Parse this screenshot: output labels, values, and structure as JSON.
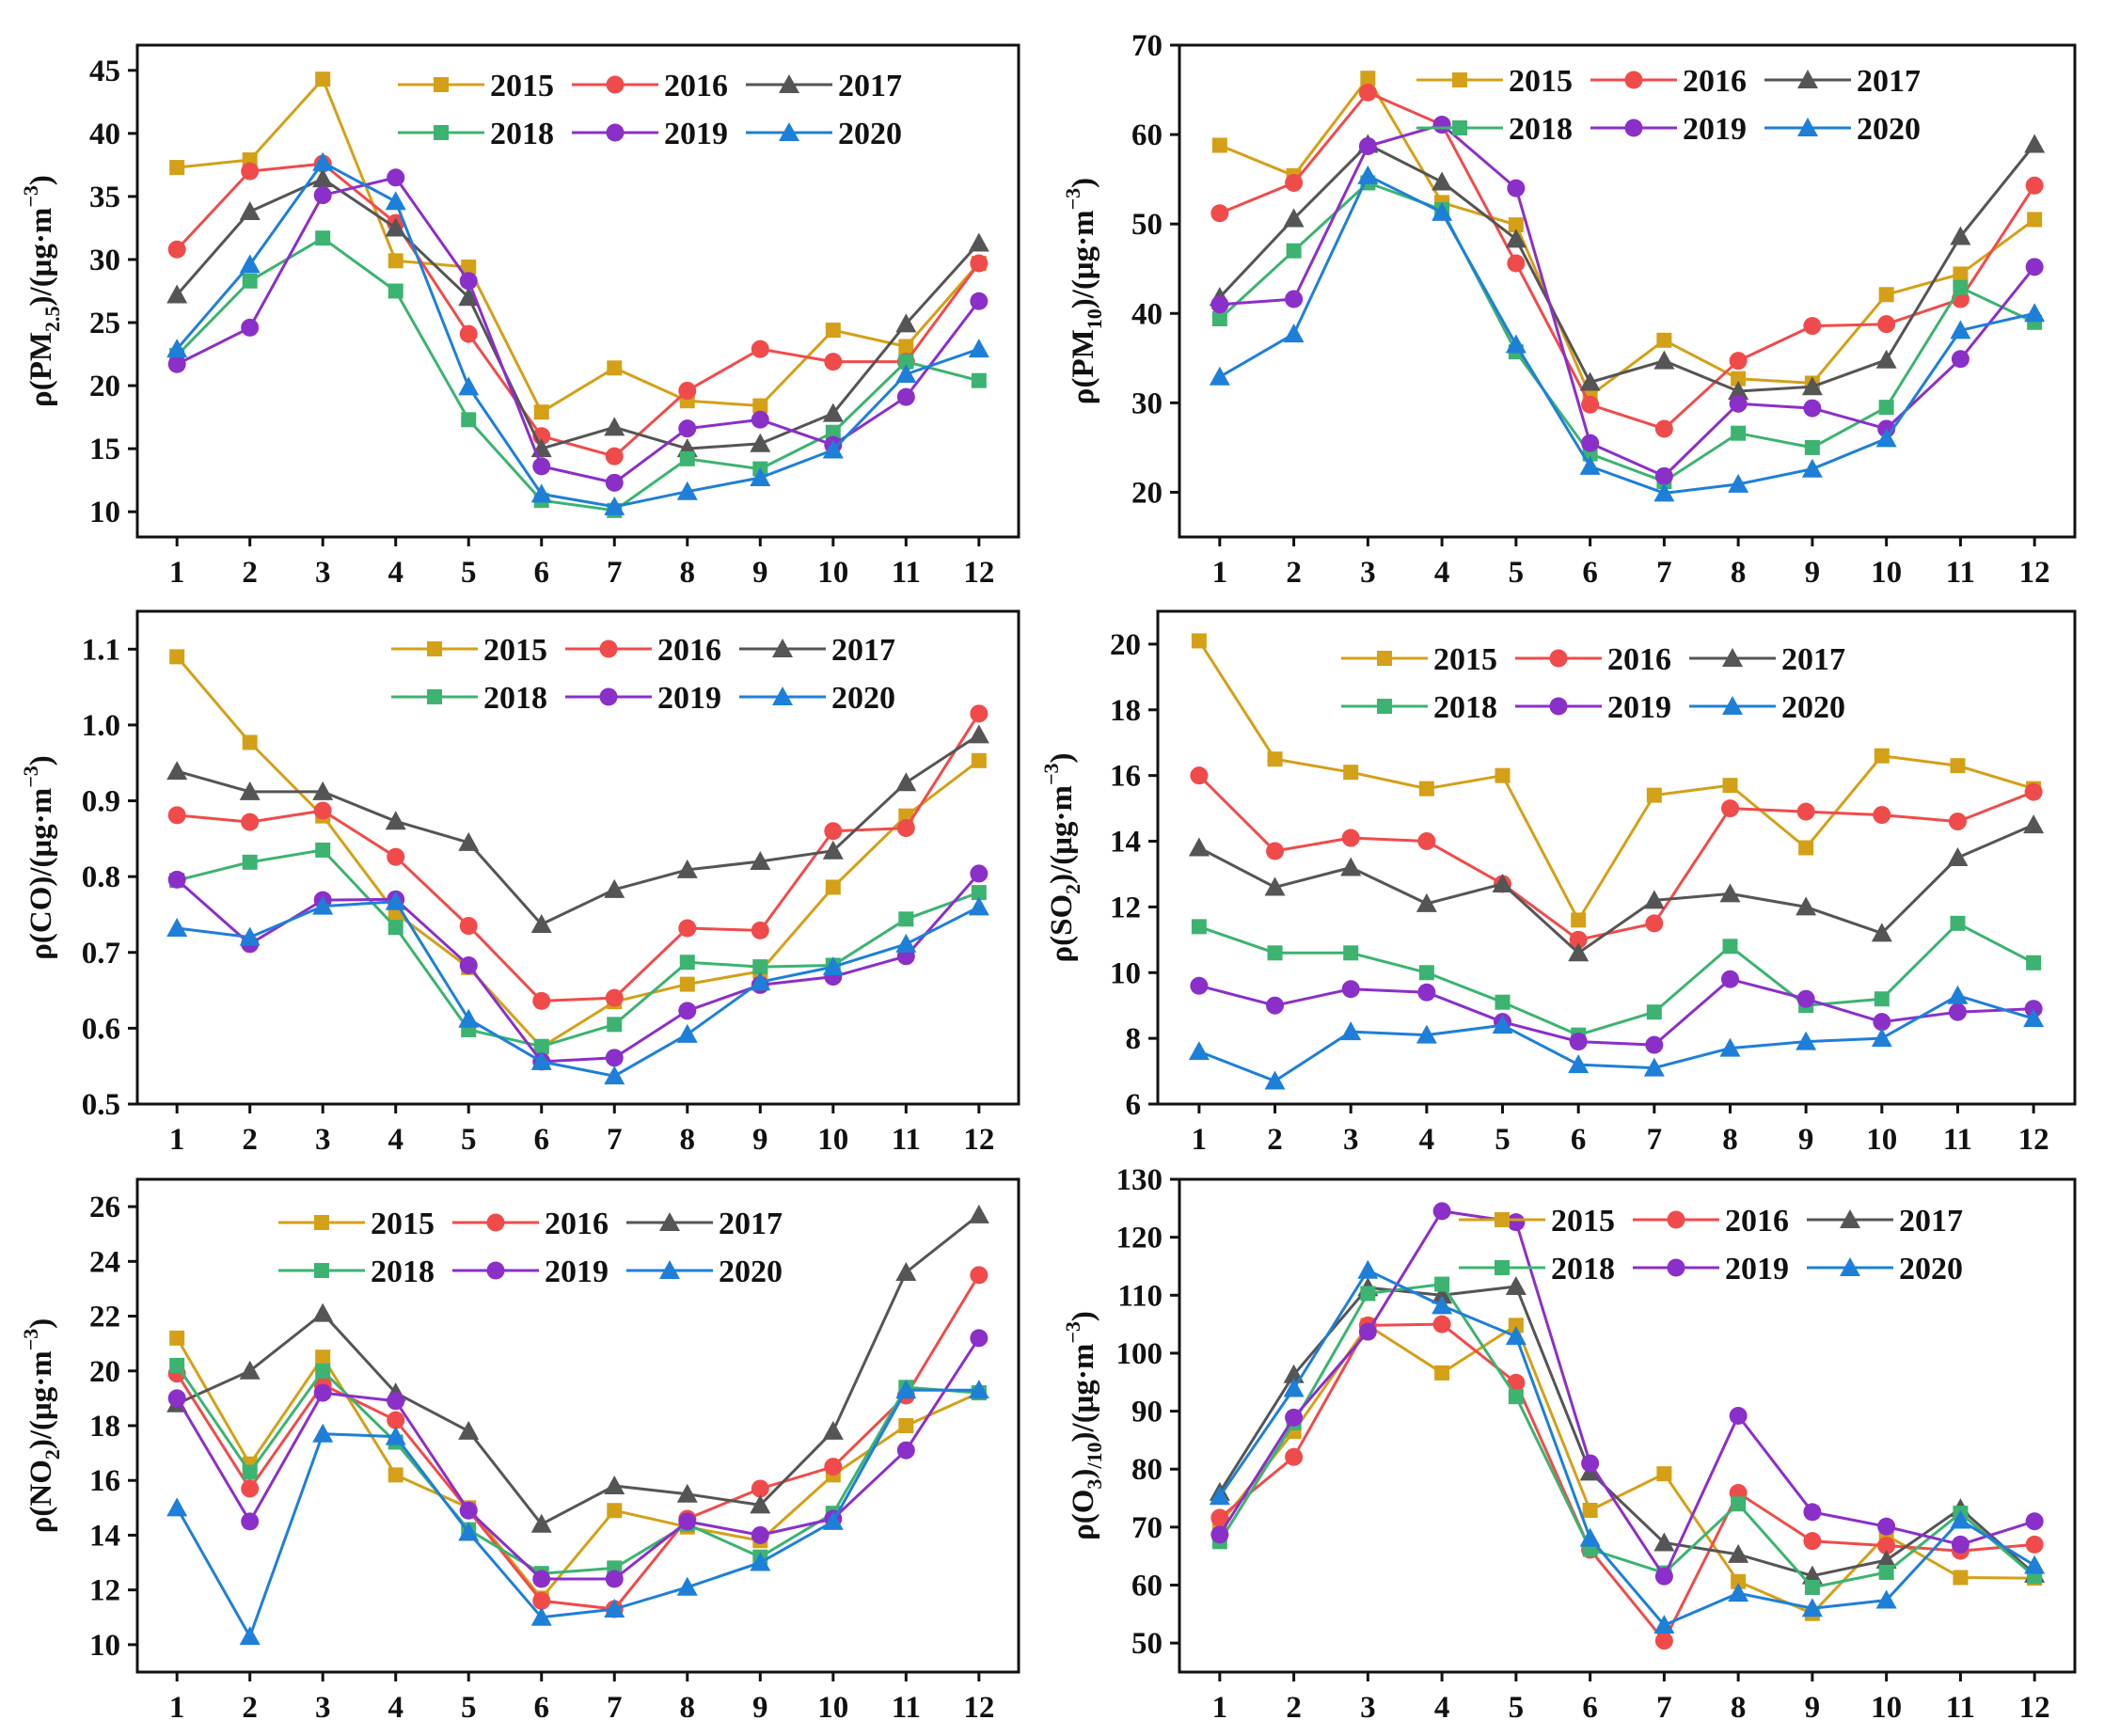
{
  "chart_data": [
    {
      "type": "line",
      "ylabel_parts": [
        {
          "text": "ρ(PM",
          "pos": "normal"
        },
        {
          "text": "2.5",
          "pos": "sub"
        },
        {
          "text": ")/(μg·m",
          "pos": "normal"
        },
        {
          "text": "−3",
          "pos": "sup"
        },
        {
          "text": ")",
          "pos": "normal"
        }
      ],
      "categories": [
        "1",
        "2",
        "3",
        "4",
        "5",
        "6",
        "7",
        "8",
        "9",
        "10",
        "11",
        "12"
      ],
      "ylim": [
        8,
        47
      ],
      "yticks": [
        "10",
        "15",
        "20",
        "25",
        "30",
        "35",
        "40",
        "45"
      ],
      "legend_rows": [
        [
          "2015",
          "2016",
          "2017"
        ],
        [
          "2018",
          "2019",
          "2020"
        ]
      ],
      "series": [
        {
          "name": "2015",
          "marker": "square",
          "color": "#d4a017",
          "values": [
            37.3,
            37.9,
            44.3,
            29.9,
            29.4,
            17.9,
            21.4,
            18.8,
            18.4,
            24.4,
            23.1,
            29.7
          ]
        },
        {
          "name": "2016",
          "marker": "circle",
          "color": "#f04b4b",
          "values": [
            30.8,
            37.0,
            37.6,
            32.9,
            24.1,
            16.0,
            14.4,
            19.6,
            22.9,
            21.9,
            21.9,
            29.7
          ]
        },
        {
          "name": "2017",
          "marker": "triangle",
          "color": "#555555",
          "values": [
            27.2,
            33.8,
            36.4,
            32.5,
            27.0,
            15.0,
            16.7,
            15.0,
            15.4,
            17.8,
            24.9,
            31.3
          ]
        },
        {
          "name": "2018",
          "marker": "square",
          "color": "#3cb371",
          "values": [
            22.4,
            28.3,
            31.7,
            27.5,
            17.3,
            10.9,
            10.1,
            14.2,
            13.4,
            16.3,
            21.9,
            20.4
          ]
        },
        {
          "name": "2019",
          "marker": "circle",
          "color": "#8b2fc9",
          "values": [
            21.7,
            24.6,
            35.1,
            36.5,
            28.3,
            13.6,
            12.3,
            16.6,
            17.3,
            15.3,
            19.1,
            26.7
          ]
        },
        {
          "name": "2020",
          "marker": "triangle",
          "color": "#1e7fd8",
          "values": [
            22.9,
            29.6,
            37.7,
            34.6,
            19.9,
            11.4,
            10.4,
            11.6,
            12.7,
            14.9,
            20.9,
            22.9
          ]
        }
      ]
    },
    {
      "type": "line",
      "ylabel_parts": [
        {
          "text": "ρ(PM",
          "pos": "normal"
        },
        {
          "text": "10",
          "pos": "sub"
        },
        {
          "text": ")/(μg·m",
          "pos": "normal"
        },
        {
          "text": "−3",
          "pos": "sup"
        },
        {
          "text": ")",
          "pos": "normal"
        }
      ],
      "categories": [
        "1",
        "2",
        "3",
        "4",
        "5",
        "6",
        "7",
        "8",
        "9",
        "10",
        "11",
        "12"
      ],
      "ylim": [
        15,
        70
      ],
      "yticks": [
        "20",
        "30",
        "40",
        "50",
        "60",
        "70"
      ],
      "legend_rows": [
        [
          "2015",
          "2016",
          "2017"
        ],
        [
          "2018",
          "2019",
          "2020"
        ]
      ],
      "series": [
        {
          "name": "2015",
          "marker": "square",
          "color": "#d4a017",
          "values": [
            58.8,
            55.4,
            66.3,
            52.4,
            49.9,
            30.8,
            37.0,
            32.7,
            32.2,
            42.1,
            44.4,
            50.5
          ]
        },
        {
          "name": "2016",
          "marker": "circle",
          "color": "#f04b4b",
          "values": [
            51.2,
            54.6,
            64.7,
            61.1,
            45.6,
            29.8,
            27.1,
            34.7,
            38.6,
            38.8,
            41.6,
            54.3
          ]
        },
        {
          "name": "2017",
          "marker": "triangle",
          "color": "#555555",
          "values": [
            41.8,
            50.6,
            58.9,
            54.7,
            48.3,
            32.3,
            34.7,
            31.3,
            31.8,
            34.8,
            48.6,
            58.9
          ]
        },
        {
          "name": "2018",
          "marker": "square",
          "color": "#3cb371",
          "values": [
            39.4,
            47.0,
            54.6,
            51.6,
            35.7,
            24.3,
            21.2,
            26.6,
            25.0,
            29.5,
            42.9,
            39.0
          ]
        },
        {
          "name": "2019",
          "marker": "circle",
          "color": "#8b2fc9",
          "values": [
            41.0,
            41.6,
            58.7,
            61.1,
            54.0,
            25.5,
            21.8,
            29.9,
            29.4,
            27.1,
            34.9,
            45.2
          ]
        },
        {
          "name": "2020",
          "marker": "triangle",
          "color": "#1e7fd8",
          "values": [
            32.9,
            37.7,
            55.4,
            51.3,
            36.5,
            22.9,
            19.9,
            20.9,
            22.6,
            26.0,
            38.1,
            40.0
          ]
        }
      ]
    },
    {
      "type": "line",
      "ylabel_parts": [
        {
          "text": "ρ(CO)/(μg·m",
          "pos": "normal"
        },
        {
          "text": "−3",
          "pos": "sup"
        },
        {
          "text": ")",
          "pos": "normal"
        }
      ],
      "categories": [
        "1",
        "2",
        "3",
        "4",
        "5",
        "6",
        "7",
        "8",
        "9",
        "10",
        "11",
        "12"
      ],
      "ylim": [
        0.5,
        1.15
      ],
      "yticks": [
        "0.5",
        "0.6",
        "0.7",
        "0.8",
        "0.9",
        "1.0",
        "1.1"
      ],
      "legend_rows": [
        [
          "2015",
          "2016",
          "2017"
        ],
        [
          "2018",
          "2019",
          "2020"
        ]
      ],
      "series": [
        {
          "name": "2015",
          "marker": "square",
          "color": "#d4a017",
          "values": [
            1.09,
            0.977,
            0.88,
            0.752,
            0.68,
            0.575,
            0.635,
            0.658,
            0.675,
            0.786,
            0.88,
            0.953
          ]
        },
        {
          "name": "2016",
          "marker": "circle",
          "color": "#f04b4b",
          "values": [
            0.881,
            0.872,
            0.887,
            0.826,
            0.735,
            0.636,
            0.64,
            0.732,
            0.729,
            0.86,
            0.864,
            1.015
          ]
        },
        {
          "name": "2017",
          "marker": "triangle",
          "color": "#555555",
          "values": [
            0.939,
            0.912,
            0.912,
            0.873,
            0.845,
            0.737,
            0.783,
            0.809,
            0.82,
            0.834,
            0.924,
            0.987
          ]
        },
        {
          "name": "2018",
          "marker": "square",
          "color": "#3cb371",
          "values": [
            0.795,
            0.819,
            0.835,
            0.733,
            0.598,
            0.576,
            0.605,
            0.687,
            0.681,
            0.683,
            0.744,
            0.779
          ]
        },
        {
          "name": "2019",
          "marker": "circle",
          "color": "#8b2fc9",
          "values": [
            0.796,
            0.711,
            0.769,
            0.77,
            0.683,
            0.556,
            0.561,
            0.623,
            0.657,
            0.668,
            0.695,
            0.804
          ]
        },
        {
          "name": "2020",
          "marker": "triangle",
          "color": "#1e7fd8",
          "values": [
            0.732,
            0.72,
            0.761,
            0.767,
            0.612,
            0.556,
            0.537,
            0.592,
            0.661,
            0.681,
            0.711,
            0.76
          ]
        }
      ]
    },
    {
      "type": "line",
      "ylabel_parts": [
        {
          "text": "ρ(SO",
          "pos": "normal"
        },
        {
          "text": "2",
          "pos": "sub"
        },
        {
          "text": ")/(μg·m",
          "pos": "normal"
        },
        {
          "text": "−3",
          "pos": "sup"
        },
        {
          "text": ")",
          "pos": "normal"
        }
      ],
      "categories": [
        "1",
        "2",
        "3",
        "4",
        "5",
        "6",
        "7",
        "8",
        "9",
        "10",
        "11",
        "12"
      ],
      "ylim": [
        6,
        21
      ],
      "yticks": [
        "6",
        "8",
        "10",
        "12",
        "14",
        "16",
        "18",
        "20"
      ],
      "legend_rows": [
        [
          "2015",
          "2016",
          "2017"
        ],
        [
          "2018",
          "2019",
          "2020"
        ]
      ],
      "series": [
        {
          "name": "2015",
          "marker": "square",
          "color": "#d4a017",
          "values": [
            20.1,
            16.5,
            16.1,
            15.6,
            16.0,
            11.6,
            15.4,
            15.7,
            13.8,
            16.6,
            16.3,
            15.6
          ]
        },
        {
          "name": "2016",
          "marker": "circle",
          "color": "#f04b4b",
          "values": [
            16.0,
            13.7,
            14.1,
            14.0,
            12.7,
            11.0,
            11.5,
            15.0,
            14.9,
            14.8,
            14.6,
            15.5
          ]
        },
        {
          "name": "2017",
          "marker": "triangle",
          "color": "#555555",
          "values": [
            13.8,
            12.6,
            13.2,
            12.1,
            12.7,
            10.6,
            12.2,
            12.4,
            12.0,
            11.2,
            13.5,
            14.5
          ]
        },
        {
          "name": "2018",
          "marker": "square",
          "color": "#3cb371",
          "values": [
            11.4,
            10.6,
            10.6,
            10.0,
            9.1,
            8.1,
            8.8,
            10.8,
            9.0,
            9.2,
            11.5,
            10.3
          ]
        },
        {
          "name": "2019",
          "marker": "circle",
          "color": "#8b2fc9",
          "values": [
            9.6,
            9.0,
            9.5,
            9.4,
            8.5,
            7.9,
            7.8,
            9.8,
            9.2,
            8.5,
            8.8,
            8.9
          ]
        },
        {
          "name": "2020",
          "marker": "triangle",
          "color": "#1e7fd8",
          "values": [
            7.6,
            6.7,
            8.2,
            8.1,
            8.4,
            7.2,
            7.1,
            7.7,
            7.9,
            8.0,
            9.3,
            8.6
          ]
        }
      ]
    },
    {
      "type": "line",
      "ylabel_parts": [
        {
          "text": "ρ(NO",
          "pos": "normal"
        },
        {
          "text": "2",
          "pos": "sub"
        },
        {
          "text": ")/(μg·m",
          "pos": "normal"
        },
        {
          "text": "−3",
          "pos": "sup"
        },
        {
          "text": ")",
          "pos": "normal"
        }
      ],
      "categories": [
        "1",
        "2",
        "3",
        "4",
        "5",
        "6",
        "7",
        "8",
        "9",
        "10",
        "11",
        "12"
      ],
      "ylim": [
        9,
        27
      ],
      "yticks": [
        "10",
        "12",
        "14",
        "16",
        "18",
        "20",
        "22",
        "24",
        "26"
      ],
      "legend_rows": [
        [
          "2015",
          "2016",
          "2017"
        ],
        [
          "2018",
          "2019",
          "2020"
        ]
      ],
      "series": [
        {
          "name": "2015",
          "marker": "square",
          "color": "#d4a017",
          "values": [
            21.2,
            16.6,
            20.5,
            16.2,
            15.0,
            11.7,
            14.9,
            14.3,
            13.8,
            16.2,
            18.0,
            19.2
          ]
        },
        {
          "name": "2016",
          "marker": "circle",
          "color": "#f04b4b",
          "values": [
            19.9,
            15.7,
            19.5,
            18.2,
            14.9,
            11.6,
            11.3,
            14.6,
            15.7,
            16.5,
            19.1,
            23.5
          ]
        },
        {
          "name": "2017",
          "marker": "triangle",
          "color": "#555555",
          "values": [
            18.8,
            20.0,
            22.1,
            19.2,
            17.8,
            14.4,
            15.8,
            15.5,
            15.1,
            17.8,
            23.6,
            25.7
          ]
        },
        {
          "name": "2018",
          "marker": "square",
          "color": "#3cb371",
          "values": [
            20.2,
            16.3,
            20.0,
            17.4,
            14.2,
            12.6,
            12.8,
            14.4,
            13.2,
            14.8,
            19.4,
            19.2
          ]
        },
        {
          "name": "2019",
          "marker": "circle",
          "color": "#8b2fc9",
          "values": [
            19.0,
            14.5,
            19.2,
            18.9,
            14.9,
            12.4,
            12.4,
            14.5,
            14.0,
            14.6,
            17.1,
            21.2
          ]
        },
        {
          "name": "2020",
          "marker": "triangle",
          "color": "#1e7fd8",
          "values": [
            15.0,
            10.3,
            17.7,
            17.6,
            14.1,
            11.0,
            11.3,
            12.1,
            13.0,
            14.5,
            19.3,
            19.3
          ]
        }
      ]
    },
    {
      "type": "line",
      "ylabel_parts": [
        {
          "text": "ρ(O",
          "pos": "normal"
        },
        {
          "text": "3",
          "pos": "sub"
        },
        {
          "text": ")",
          "pos": "normal"
        },
        {
          "text": "/10",
          "pos": "sub"
        },
        {
          "text": ")/(μg·m",
          "pos": "normal"
        },
        {
          "text": "−3",
          "pos": "sup"
        },
        {
          "text": ")",
          "pos": "normal"
        }
      ],
      "categories": [
        "1",
        "2",
        "3",
        "4",
        "5",
        "6",
        "7",
        "8",
        "9",
        "10",
        "11",
        "12"
      ],
      "ylim": [
        45,
        130
      ],
      "yticks": [
        "50",
        "60",
        "70",
        "80",
        "90",
        "100",
        "110",
        "120",
        "130"
      ],
      "legend_rows": [
        [
          "2015",
          "2016",
          "2017"
        ],
        [
          "2018",
          "2019",
          "2020"
        ]
      ],
      "series": [
        {
          "name": "2015",
          "marker": "square",
          "color": "#d4a017",
          "values": [
            70.5,
            86.5,
            104.8,
            96.6,
            104.8,
            72.9,
            79.2,
            60.6,
            55.1,
            68.6,
            61.3,
            61.2
          ]
        },
        {
          "name": "2016",
          "marker": "circle",
          "color": "#f04b4b",
          "values": [
            71.6,
            82.1,
            104.8,
            105.0,
            94.9,
            66.1,
            50.4,
            75.9,
            67.6,
            66.8,
            65.9,
            67.0
          ]
        },
        {
          "name": "2017",
          "marker": "triangle",
          "color": "#555555",
          "values": [
            76.0,
            96.3,
            111.3,
            110.0,
            111.5,
            79.5,
            67.3,
            65.3,
            61.6,
            64.3,
            73.2,
            61.9
          ]
        },
        {
          "name": "2018",
          "marker": "square",
          "color": "#3cb371",
          "values": [
            67.5,
            88.0,
            110.3,
            111.9,
            92.5,
            66.2,
            62.1,
            74.0,
            59.6,
            62.2,
            72.4,
            61.5
          ]
        },
        {
          "name": "2019",
          "marker": "circle",
          "color": "#8b2fc9",
          "values": [
            68.7,
            88.9,
            103.7,
            124.5,
            122.6,
            81.0,
            61.5,
            89.2,
            72.6,
            70.1,
            67.0,
            71.0
          ]
        },
        {
          "name": "2020",
          "marker": "triangle",
          "color": "#1e7fd8",
          "values": [
            75.3,
            93.9,
            114.3,
            108.2,
            102.9,
            68.1,
            53.1,
            58.6,
            56.0,
            57.4,
            71.2,
            63.4
          ]
        }
      ]
    }
  ]
}
